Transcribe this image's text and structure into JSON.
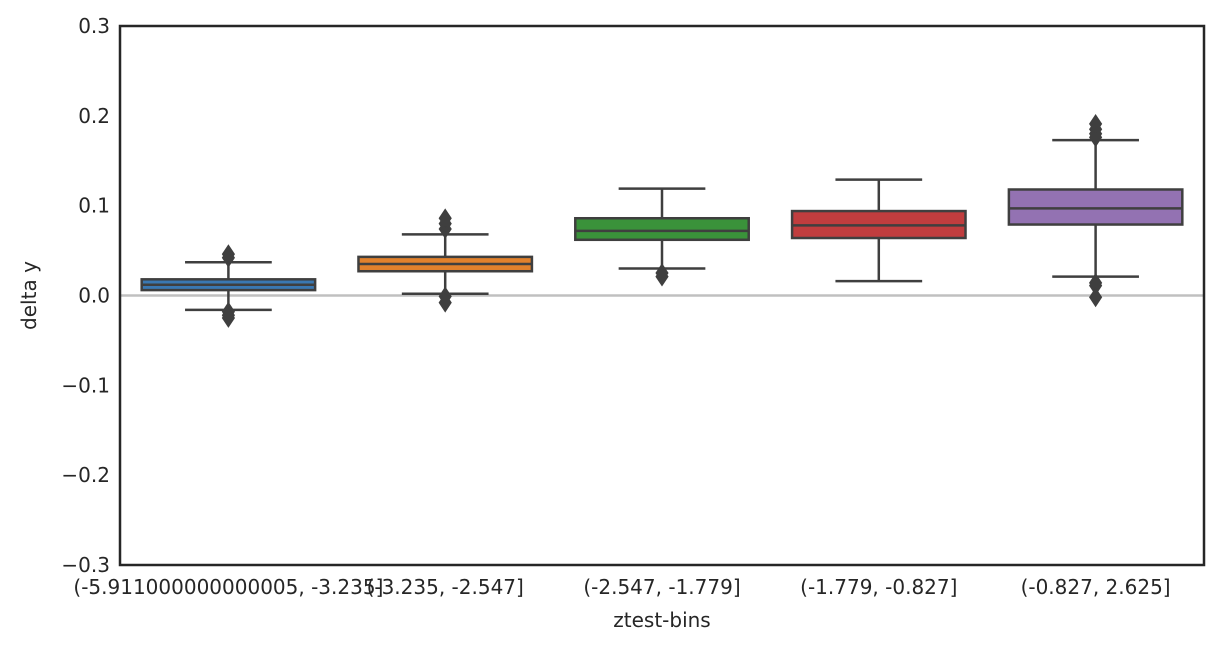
{
  "chart_data": {
    "type": "box",
    "xlabel": "ztest-bins",
    "ylabel": "delta y",
    "ylim": [
      -0.3,
      0.3
    ],
    "yticks": [
      -0.3,
      -0.2,
      -0.1,
      0.0,
      0.1,
      0.2,
      0.3
    ],
    "ytick_labels": [
      "−0.3",
      "−0.2",
      "−0.1",
      "0.0",
      "0.1",
      "0.2",
      "0.3"
    ],
    "reference_line": 0.0,
    "grid": false,
    "categories": [
      "(-5.911000000000005, -3.235]",
      "(-3.235, -2.547]",
      "(-2.547, -1.779]",
      "(-1.779, -0.827]",
      "(-0.827, 2.625]"
    ],
    "boxes": [
      {
        "color": "#3a78b2",
        "q1": 0.006,
        "median": 0.012,
        "q3": 0.018,
        "whisker_low": -0.016,
        "whisker_high": 0.037,
        "outliers": [
          -0.018,
          -0.022,
          -0.025,
          0.042,
          0.046
        ]
      },
      {
        "color": "#e1812c",
        "q1": 0.027,
        "median": 0.035,
        "q3": 0.043,
        "whisker_low": 0.002,
        "whisker_high": 0.068,
        "outliers": [
          -0.001,
          -0.008,
          0.074,
          0.08,
          0.086
        ]
      },
      {
        "color": "#3a923a",
        "q1": 0.062,
        "median": 0.072,
        "q3": 0.086,
        "whisker_low": 0.03,
        "whisker_high": 0.119,
        "outliers": [
          0.025,
          0.021
        ]
      },
      {
        "color": "#c03d3e",
        "q1": 0.064,
        "median": 0.078,
        "q3": 0.094,
        "whisker_low": 0.016,
        "whisker_high": 0.129,
        "outliers": []
      },
      {
        "color": "#9372b2",
        "q1": 0.079,
        "median": 0.097,
        "q3": 0.118,
        "whisker_low": 0.021,
        "whisker_high": 0.173,
        "outliers": [
          0.014,
          0.011,
          -0.002,
          0.176,
          0.18,
          0.185,
          0.191
        ]
      }
    ]
  }
}
